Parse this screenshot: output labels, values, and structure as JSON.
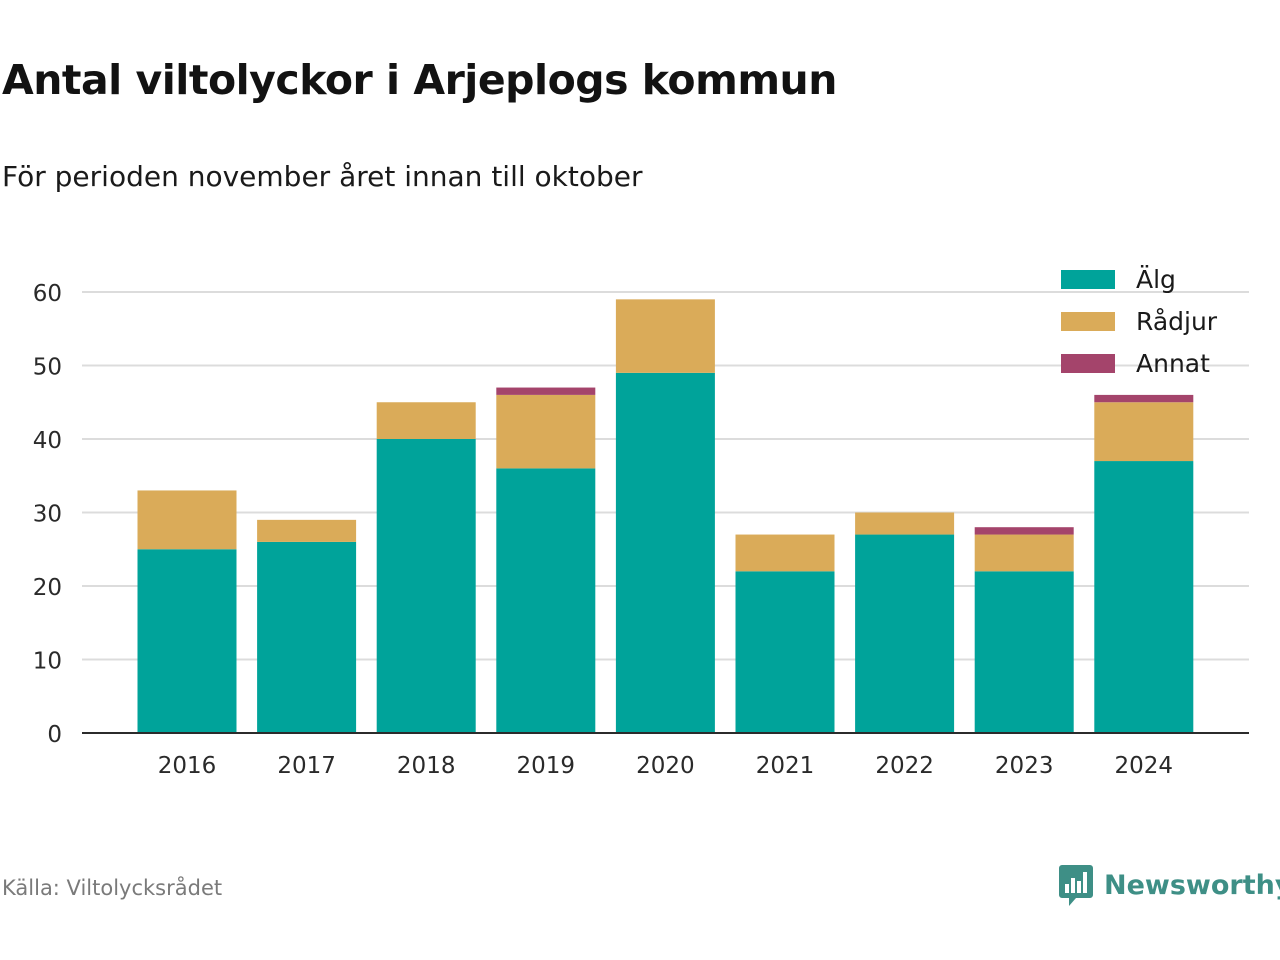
{
  "title": "Antal viltolyckor i Arjeplogs kommun",
  "subtitle": "För perioden november året innan till oktober",
  "source": "Källa: Viltolycksrådet",
  "brand": {
    "name": "Newsworthy",
    "icon": "newsworthy-logo-icon",
    "color": "#3e8f86"
  },
  "chart_data": {
    "type": "bar",
    "stacked": true,
    "categories": [
      "2016",
      "2017",
      "2018",
      "2019",
      "2020",
      "2021",
      "2022",
      "2023",
      "2024"
    ],
    "series": [
      {
        "name": "Älg",
        "color": "#00a39a",
        "values": [
          25,
          26,
          40,
          36,
          49,
          22,
          27,
          22,
          37
        ]
      },
      {
        "name": "Rådjur",
        "color": "#daab59",
        "values": [
          8,
          3,
          5,
          10,
          10,
          5,
          3,
          5,
          8
        ]
      },
      {
        "name": "Annat",
        "color": "#a4446b",
        "values": [
          0,
          0,
          0,
          1,
          0,
          0,
          0,
          1,
          1
        ]
      }
    ],
    "ylim": [
      0,
      60
    ],
    "yticks": [
      0,
      10,
      20,
      30,
      40,
      50,
      60
    ],
    "grid": true,
    "legend": "top-right",
    "xlabel": "",
    "ylabel": ""
  }
}
